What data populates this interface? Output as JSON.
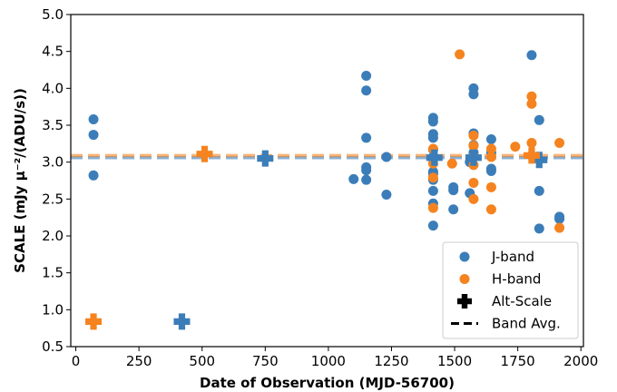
{
  "chart_data": {
    "type": "scatter",
    "title": "",
    "xlabel": "Date of Observation (MJD-56700)",
    "ylabel": "SCALE (mJy μ⁻²/(ADU/s))",
    "xlim": [
      -20,
      2010
    ],
    "ylim": [
      0.5,
      5.0
    ],
    "xticks": [
      "0",
      "250",
      "500",
      "750",
      "1000",
      "1250",
      "1500",
      "1750",
      "2000"
    ],
    "yticks": [
      "0.5",
      "1.0",
      "1.5",
      "2.0",
      "2.5",
      "3.0",
      "3.5",
      "4.0",
      "4.5",
      "5.0"
    ],
    "grid": false,
    "legend_position": "lower-right",
    "colors": {
      "j_band": "#3b7db8",
      "h_band": "#f5831f",
      "alt_scale": "#000000"
    },
    "series": [
      {
        "name": "J-band",
        "kind": "points",
        "color": "#3b7db8",
        "points": [
          [
            70,
            3.58
          ],
          [
            70,
            3.37
          ],
          [
            70,
            2.82
          ],
          [
            1100,
            2.77
          ],
          [
            1150,
            4.17
          ],
          [
            1150,
            3.97
          ],
          [
            1150,
            3.33
          ],
          [
            1150,
            2.93
          ],
          [
            1150,
            2.89
          ],
          [
            1150,
            2.76
          ],
          [
            1230,
            3.07
          ],
          [
            1230,
            2.56
          ],
          [
            1415,
            3.6
          ],
          [
            1415,
            3.55
          ],
          [
            1415,
            3.38
          ],
          [
            1415,
            3.33
          ],
          [
            1415,
            3.17
          ],
          [
            1415,
            3.07
          ],
          [
            1415,
            2.87
          ],
          [
            1415,
            2.84
          ],
          [
            1415,
            2.76
          ],
          [
            1415,
            2.61
          ],
          [
            1415,
            2.44
          ],
          [
            1415,
            2.14
          ],
          [
            1495,
            2.66
          ],
          [
            1495,
            2.62
          ],
          [
            1495,
            2.36
          ],
          [
            1560,
            3.0
          ],
          [
            1560,
            2.58
          ],
          [
            1575,
            4.0
          ],
          [
            1575,
            3.92
          ],
          [
            1575,
            3.39
          ],
          [
            1575,
            3.23
          ],
          [
            1575,
            3.13
          ],
          [
            1575,
            3.07
          ],
          [
            1645,
            3.31
          ],
          [
            1645,
            3.13
          ],
          [
            1645,
            2.91
          ],
          [
            1645,
            2.88
          ],
          [
            1805,
            4.45
          ],
          [
            1835,
            3.57
          ],
          [
            1835,
            2.61
          ],
          [
            1835,
            2.1
          ],
          [
            1915,
            2.26
          ],
          [
            1915,
            2.23
          ]
        ]
      },
      {
        "name": "H-band",
        "kind": "points",
        "color": "#f5831f",
        "points": [
          [
            1415,
            3.18
          ],
          [
            1415,
            2.98
          ],
          [
            1415,
            2.79
          ],
          [
            1415,
            2.38
          ],
          [
            1490,
            2.98
          ],
          [
            1520,
            4.46
          ],
          [
            1575,
            3.36
          ],
          [
            1575,
            3.22
          ],
          [
            1575,
            3.07
          ],
          [
            1575,
            2.96
          ],
          [
            1575,
            2.72
          ],
          [
            1575,
            2.5
          ],
          [
            1645,
            3.18
          ],
          [
            1645,
            3.07
          ],
          [
            1645,
            2.66
          ],
          [
            1645,
            2.36
          ],
          [
            1740,
            3.21
          ],
          [
            1805,
            3.89
          ],
          [
            1805,
            3.79
          ],
          [
            1805,
            3.26
          ],
          [
            1805,
            3.09
          ],
          [
            1915,
            3.26
          ],
          [
            1915,
            2.11
          ]
        ]
      },
      {
        "name": "Alt-Scale",
        "kind": "plus",
        "color": "#000000",
        "points_j": [
          [
            420,
            0.84
          ],
          [
            750,
            3.05
          ],
          [
            1420,
            3.06
          ],
          [
            1575,
            3.06
          ],
          [
            1835,
            3.03
          ]
        ],
        "points_h": [
          [
            70,
            0.84
          ],
          [
            510,
            3.11
          ],
          [
            1805,
            3.09
          ]
        ]
      },
      {
        "name": "Band Avg.",
        "kind": "hline",
        "color": "#000000",
        "j_value": 3.06,
        "h_value": 3.09
      }
    ]
  }
}
